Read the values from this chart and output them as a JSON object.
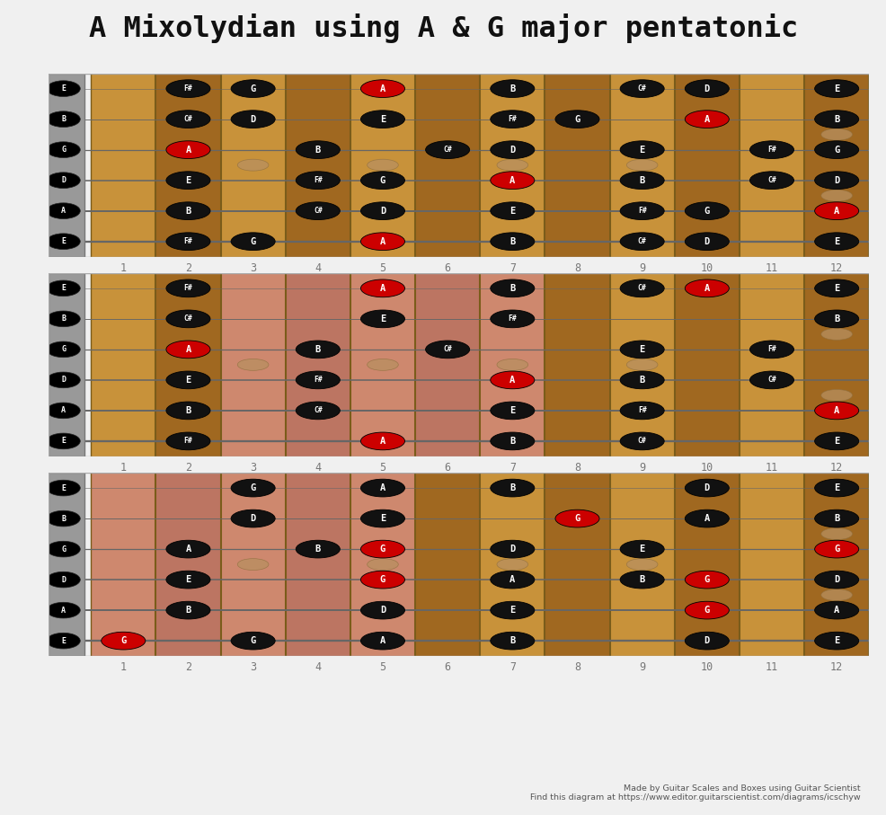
{
  "title": "A Mixolydian using A & G major pentatonic",
  "bg_color": "#f0f0f0",
  "fretboard_light": "#c8923a",
  "fretboard_dark": "#a06820",
  "nut_color": "#999999",
  "fret_color": "#7a5c1a",
  "string_color": "#666666",
  "highlight_pink": "#d4809a",
  "dot_color": "#b89060",
  "num_frets": 12,
  "num_strings": 6,
  "open_notes": [
    "E",
    "B",
    "G",
    "D",
    "A",
    "E"
  ],
  "diagrams": [
    {
      "highlight_frets": null,
      "notes": [
        {
          "string": 0,
          "fret": 2,
          "note": "F#",
          "color": "black"
        },
        {
          "string": 0,
          "fret": 3,
          "note": "G",
          "color": "black"
        },
        {
          "string": 0,
          "fret": 5,
          "note": "A",
          "color": "red"
        },
        {
          "string": 0,
          "fret": 7,
          "note": "B",
          "color": "black"
        },
        {
          "string": 0,
          "fret": 9,
          "note": "C#",
          "color": "black"
        },
        {
          "string": 0,
          "fret": 10,
          "note": "D",
          "color": "black"
        },
        {
          "string": 0,
          "fret": 12,
          "note": "E",
          "color": "black"
        },
        {
          "string": 1,
          "fret": 2,
          "note": "C#",
          "color": "black"
        },
        {
          "string": 1,
          "fret": 3,
          "note": "D",
          "color": "black"
        },
        {
          "string": 1,
          "fret": 5,
          "note": "E",
          "color": "black"
        },
        {
          "string": 1,
          "fret": 7,
          "note": "F#",
          "color": "black"
        },
        {
          "string": 1,
          "fret": 8,
          "note": "G",
          "color": "black"
        },
        {
          "string": 1,
          "fret": 10,
          "note": "A",
          "color": "red"
        },
        {
          "string": 1,
          "fret": 12,
          "note": "B",
          "color": "black"
        },
        {
          "string": 2,
          "fret": 2,
          "note": "A",
          "color": "red"
        },
        {
          "string": 2,
          "fret": 4,
          "note": "B",
          "color": "black"
        },
        {
          "string": 2,
          "fret": 6,
          "note": "C#",
          "color": "black"
        },
        {
          "string": 2,
          "fret": 7,
          "note": "D",
          "color": "black"
        },
        {
          "string": 2,
          "fret": 9,
          "note": "E",
          "color": "black"
        },
        {
          "string": 2,
          "fret": 11,
          "note": "F#",
          "color": "black"
        },
        {
          "string": 2,
          "fret": 12,
          "note": "G",
          "color": "black"
        },
        {
          "string": 3,
          "fret": 2,
          "note": "E",
          "color": "black"
        },
        {
          "string": 3,
          "fret": 4,
          "note": "F#",
          "color": "black"
        },
        {
          "string": 3,
          "fret": 5,
          "note": "G",
          "color": "black"
        },
        {
          "string": 3,
          "fret": 7,
          "note": "A",
          "color": "red"
        },
        {
          "string": 3,
          "fret": 9,
          "note": "B",
          "color": "black"
        },
        {
          "string": 3,
          "fret": 11,
          "note": "C#",
          "color": "black"
        },
        {
          "string": 3,
          "fret": 12,
          "note": "D",
          "color": "black"
        },
        {
          "string": 4,
          "fret": 2,
          "note": "B",
          "color": "black"
        },
        {
          "string": 4,
          "fret": 4,
          "note": "C#",
          "color": "black"
        },
        {
          "string": 4,
          "fret": 5,
          "note": "D",
          "color": "black"
        },
        {
          "string": 4,
          "fret": 7,
          "note": "E",
          "color": "black"
        },
        {
          "string": 4,
          "fret": 9,
          "note": "F#",
          "color": "black"
        },
        {
          "string": 4,
          "fret": 10,
          "note": "G",
          "color": "black"
        },
        {
          "string": 4,
          "fret": 12,
          "note": "A",
          "color": "red"
        },
        {
          "string": 5,
          "fret": 2,
          "note": "F#",
          "color": "black"
        },
        {
          "string": 5,
          "fret": 3,
          "note": "G",
          "color": "black"
        },
        {
          "string": 5,
          "fret": 5,
          "note": "A",
          "color": "red"
        },
        {
          "string": 5,
          "fret": 7,
          "note": "B",
          "color": "black"
        },
        {
          "string": 5,
          "fret": 9,
          "note": "C#",
          "color": "black"
        },
        {
          "string": 5,
          "fret": 10,
          "note": "D",
          "color": "black"
        },
        {
          "string": 5,
          "fret": 12,
          "note": "E",
          "color": "black"
        }
      ],
      "dots": [
        {
          "fret": 3,
          "string_mid": 2.5
        },
        {
          "fret": 5,
          "string_mid": 2.5
        },
        {
          "fret": 7,
          "string_mid": 2.5
        },
        {
          "fret": 9,
          "string_mid": 2.5
        },
        {
          "fret": 12,
          "string_mid": 1.5
        },
        {
          "fret": 12,
          "string_mid": 3.5
        }
      ]
    },
    {
      "highlight_frets": [
        3,
        7
      ],
      "notes": [
        {
          "string": 0,
          "fret": 2,
          "note": "F#",
          "color": "black"
        },
        {
          "string": 0,
          "fret": 5,
          "note": "A",
          "color": "red"
        },
        {
          "string": 0,
          "fret": 7,
          "note": "B",
          "color": "black"
        },
        {
          "string": 0,
          "fret": 9,
          "note": "C#",
          "color": "black"
        },
        {
          "string": 0,
          "fret": 10,
          "note": "A",
          "color": "red"
        },
        {
          "string": 0,
          "fret": 12,
          "note": "E",
          "color": "black"
        },
        {
          "string": 1,
          "fret": 2,
          "note": "C#",
          "color": "black"
        },
        {
          "string": 1,
          "fret": 5,
          "note": "E",
          "color": "black"
        },
        {
          "string": 1,
          "fret": 7,
          "note": "F#",
          "color": "black"
        },
        {
          "string": 1,
          "fret": 12,
          "note": "B",
          "color": "black"
        },
        {
          "string": 2,
          "fret": 2,
          "note": "A",
          "color": "red"
        },
        {
          "string": 2,
          "fret": 4,
          "note": "B",
          "color": "black"
        },
        {
          "string": 2,
          "fret": 6,
          "note": "C#",
          "color": "black"
        },
        {
          "string": 2,
          "fret": 9,
          "note": "E",
          "color": "black"
        },
        {
          "string": 2,
          "fret": 11,
          "note": "F#",
          "color": "black"
        },
        {
          "string": 3,
          "fret": 2,
          "note": "E",
          "color": "black"
        },
        {
          "string": 3,
          "fret": 4,
          "note": "F#",
          "color": "black"
        },
        {
          "string": 3,
          "fret": 7,
          "note": "A",
          "color": "red"
        },
        {
          "string": 3,
          "fret": 9,
          "note": "B",
          "color": "black"
        },
        {
          "string": 3,
          "fret": 11,
          "note": "C#",
          "color": "black"
        },
        {
          "string": 4,
          "fret": 2,
          "note": "B",
          "color": "black"
        },
        {
          "string": 4,
          "fret": 4,
          "note": "C#",
          "color": "black"
        },
        {
          "string": 4,
          "fret": 7,
          "note": "E",
          "color": "black"
        },
        {
          "string": 4,
          "fret": 9,
          "note": "F#",
          "color": "black"
        },
        {
          "string": 4,
          "fret": 12,
          "note": "A",
          "color": "red"
        },
        {
          "string": 5,
          "fret": 2,
          "note": "F#",
          "color": "black"
        },
        {
          "string": 5,
          "fret": 5,
          "note": "A",
          "color": "red"
        },
        {
          "string": 5,
          "fret": 7,
          "note": "B",
          "color": "black"
        },
        {
          "string": 5,
          "fret": 9,
          "note": "C#",
          "color": "black"
        },
        {
          "string": 5,
          "fret": 12,
          "note": "E",
          "color": "black"
        }
      ],
      "dots": [
        {
          "fret": 3,
          "string_mid": 2.5
        },
        {
          "fret": 5,
          "string_mid": 2.5
        },
        {
          "fret": 7,
          "string_mid": 2.5
        },
        {
          "fret": 9,
          "string_mid": 2.5
        },
        {
          "fret": 12,
          "string_mid": 1.5
        },
        {
          "fret": 12,
          "string_mid": 3.5
        }
      ]
    },
    {
      "highlight_frets": [
        1,
        5
      ],
      "notes": [
        {
          "string": 0,
          "fret": 3,
          "note": "G",
          "color": "black"
        },
        {
          "string": 0,
          "fret": 5,
          "note": "A",
          "color": "black"
        },
        {
          "string": 0,
          "fret": 7,
          "note": "B",
          "color": "black"
        },
        {
          "string": 0,
          "fret": 10,
          "note": "D",
          "color": "black"
        },
        {
          "string": 0,
          "fret": 12,
          "note": "E",
          "color": "black"
        },
        {
          "string": 1,
          "fret": 3,
          "note": "D",
          "color": "black"
        },
        {
          "string": 1,
          "fret": 5,
          "note": "E",
          "color": "black"
        },
        {
          "string": 1,
          "fret": 8,
          "note": "G",
          "color": "red"
        },
        {
          "string": 1,
          "fret": 10,
          "note": "A",
          "color": "black"
        },
        {
          "string": 1,
          "fret": 12,
          "note": "B",
          "color": "black"
        },
        {
          "string": 2,
          "fret": 2,
          "note": "A",
          "color": "black"
        },
        {
          "string": 2,
          "fret": 4,
          "note": "B",
          "color": "black"
        },
        {
          "string": 2,
          "fret": 5,
          "note": "G",
          "color": "red"
        },
        {
          "string": 2,
          "fret": 7,
          "note": "D",
          "color": "black"
        },
        {
          "string": 2,
          "fret": 9,
          "note": "E",
          "color": "black"
        },
        {
          "string": 2,
          "fret": 12,
          "note": "G",
          "color": "red"
        },
        {
          "string": 3,
          "fret": 2,
          "note": "E",
          "color": "black"
        },
        {
          "string": 3,
          "fret": 5,
          "note": "G",
          "color": "red"
        },
        {
          "string": 3,
          "fret": 7,
          "note": "A",
          "color": "black"
        },
        {
          "string": 3,
          "fret": 9,
          "note": "B",
          "color": "black"
        },
        {
          "string": 3,
          "fret": 10,
          "note": "G",
          "color": "red"
        },
        {
          "string": 3,
          "fret": 12,
          "note": "D",
          "color": "black"
        },
        {
          "string": 4,
          "fret": 2,
          "note": "B",
          "color": "black"
        },
        {
          "string": 4,
          "fret": 5,
          "note": "D",
          "color": "black"
        },
        {
          "string": 4,
          "fret": 7,
          "note": "E",
          "color": "black"
        },
        {
          "string": 4,
          "fret": 10,
          "note": "G",
          "color": "red"
        },
        {
          "string": 4,
          "fret": 12,
          "note": "A",
          "color": "black"
        },
        {
          "string": 5,
          "fret": 1,
          "note": "G",
          "color": "red"
        },
        {
          "string": 5,
          "fret": 3,
          "note": "G",
          "color": "black"
        },
        {
          "string": 5,
          "fret": 5,
          "note": "A",
          "color": "black"
        },
        {
          "string": 5,
          "fret": 7,
          "note": "B",
          "color": "black"
        },
        {
          "string": 5,
          "fret": 10,
          "note": "D",
          "color": "black"
        },
        {
          "string": 5,
          "fret": 12,
          "note": "E",
          "color": "black"
        }
      ],
      "dots": [
        {
          "fret": 3,
          "string_mid": 2.5
        },
        {
          "fret": 5,
          "string_mid": 2.5
        },
        {
          "fret": 7,
          "string_mid": 2.5
        },
        {
          "fret": 9,
          "string_mid": 2.5
        },
        {
          "fret": 12,
          "string_mid": 1.5
        },
        {
          "fret": 12,
          "string_mid": 3.5
        }
      ]
    }
  ],
  "footer1": "Made by Guitar Scales and Boxes using Guitar Scientist",
  "footer2": "Find this diagram at https://www.editor.guitarscientist.com/diagrams/icschyw"
}
